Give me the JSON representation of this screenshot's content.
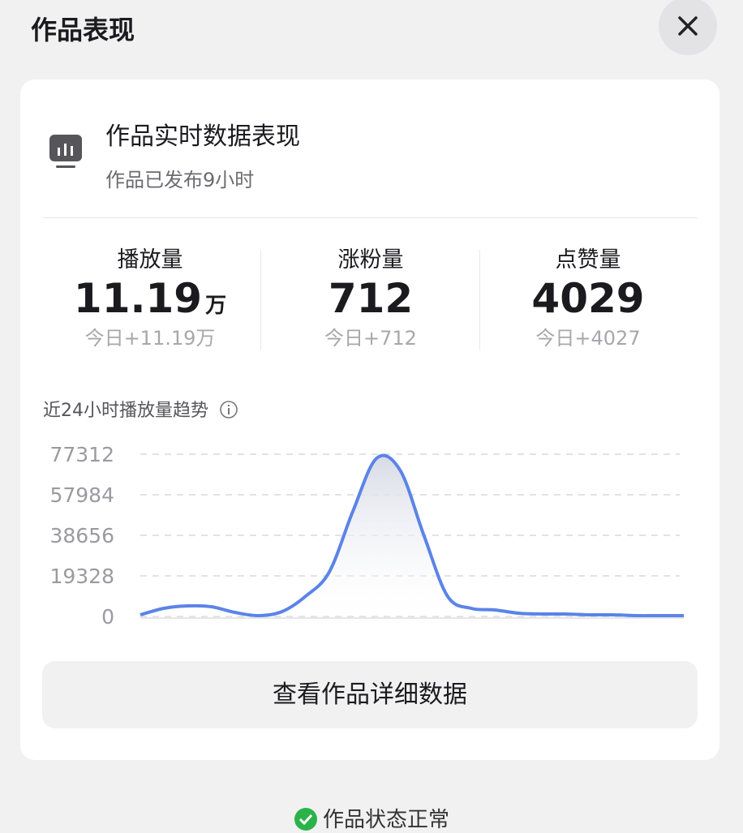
{
  "header": {
    "title": "作品表现"
  },
  "card": {
    "title": "作品实时数据表现",
    "subtitle": "作品已发布9小时"
  },
  "stats": [
    {
      "label": "播放量",
      "value": "11.19",
      "unit": "万",
      "today": "今日+11.19万"
    },
    {
      "label": "涨粉量",
      "value": "712",
      "today": "今日+712"
    },
    {
      "label": "点赞量",
      "value": "4029",
      "today": "今日+4027"
    }
  ],
  "chart_data": {
    "type": "line",
    "title": "近24小时播放量趋势",
    "categories": [
      null,
      null,
      null,
      null,
      null,
      null,
      null,
      null,
      null,
      null,
      null,
      null,
      null,
      null,
      null,
      null,
      null,
      null,
      null,
      null,
      null,
      null,
      null,
      null
    ],
    "values": [
      773,
      3866,
      5025,
      4639,
      1933,
      387,
      2319,
      9664,
      21261,
      50253,
      75379,
      69581,
      38656,
      9664,
      3866,
      3092,
      1546,
      1160,
      1160,
      773,
      773,
      387,
      387,
      387
    ],
    "color": "#5b84e8",
    "ylim": [
      0,
      77312
    ],
    "yticks": [
      0,
      19328,
      38656,
      57984,
      77312
    ],
    "grid": true
  },
  "button": {
    "label": "查看作品详细数据"
  },
  "status": {
    "label": "作品状态正常"
  }
}
